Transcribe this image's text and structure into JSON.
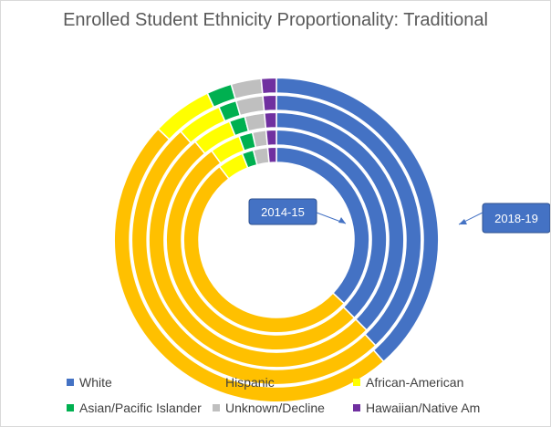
{
  "chart_data": {
    "type": "donut",
    "title": "Enrolled Student Ethnicity Proportionality: Traditional",
    "categories": [
      "White",
      "Hispanic",
      "African-American",
      "Asian/Pacific Islander",
      "Unknown/Decline",
      "Hawaiian/Native Am"
    ],
    "colors": [
      "#4472C4",
      "#FFC000",
      "#FFFF00",
      "#00B050",
      "#BFBFBF",
      "#7030A0"
    ],
    "series": [
      {
        "values": [
          37.0,
          52.5,
          4.5,
          2.0,
          2.5,
          1.5
        ]
      },
      {
        "values": [
          37.5,
          52.5,
          4.5,
          2.0,
          2.0,
          1.5
        ]
      },
      {
        "values": [
          37.5,
          51.5,
          5.0,
          2.0,
          2.5,
          1.5
        ]
      },
      {
        "values": [
          38.0,
          50.5,
          5.0,
          2.0,
          3.0,
          1.5
        ]
      },
      {
        "values": [
          38.5,
          48.5,
          6.0,
          2.5,
          3.0,
          1.5
        ]
      }
    ],
    "annotations": [
      {
        "text": "2014-15",
        "points_to": "innermost ring"
      },
      {
        "text": "2018-19",
        "points_to": "outermost ring"
      }
    ],
    "legend_position": "bottom"
  }
}
